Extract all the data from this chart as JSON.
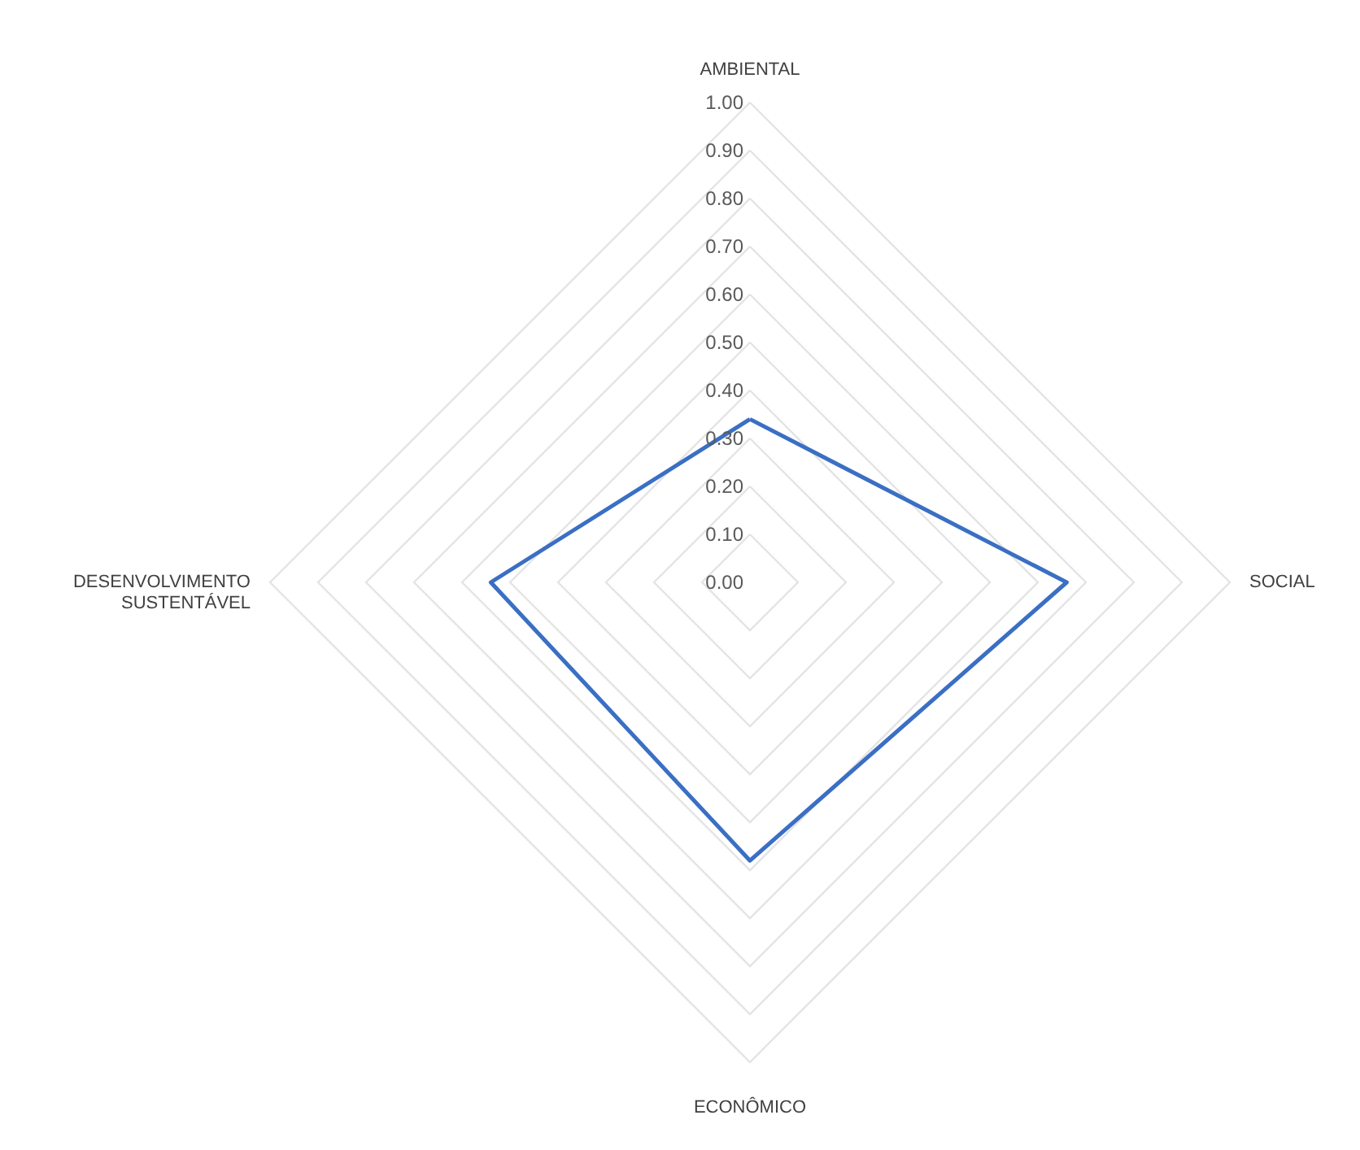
{
  "chart_data": {
    "type": "radar",
    "categories": [
      "AMBIENTAL",
      "SOCIAL",
      "ECONÔMICO",
      "DESENVOLVIMENTO SUSTENTÁVEL"
    ],
    "series": [
      {
        "color": "#3a6fc4",
        "values": [
          0.34,
          0.66,
          0.58,
          0.54
        ]
      }
    ],
    "ylim": [
      0,
      1
    ],
    "yticks": [
      {
        "value": 0,
        "label": "0.00"
      },
      {
        "value": 0.1,
        "label": "0.10"
      },
      {
        "value": 0.2,
        "label": "0.20"
      },
      {
        "value": 0.3,
        "label": "0.30"
      },
      {
        "value": 0.4,
        "label": "0.40"
      },
      {
        "value": 0.5,
        "label": "0.50"
      },
      {
        "value": 0.6,
        "label": "0.60"
      },
      {
        "value": 0.7,
        "label": "0.70"
      },
      {
        "value": 0.8,
        "label": "0.80"
      },
      {
        "value": 0.9,
        "label": "0.90"
      },
      {
        "value": 1,
        "label": "1.00"
      }
    ],
    "grid": true,
    "marker": "none",
    "line_style": "solid"
  }
}
